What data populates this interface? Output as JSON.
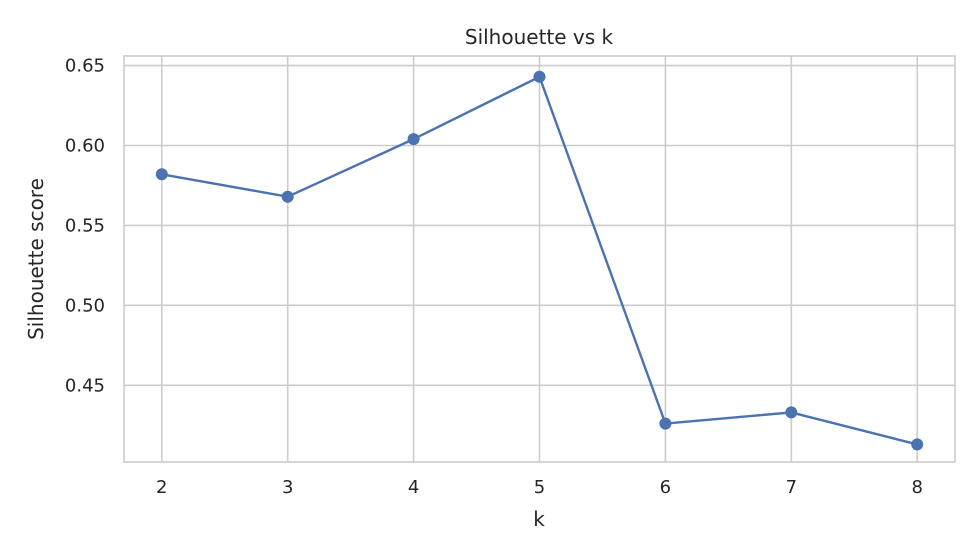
{
  "chart_data": {
    "type": "line",
    "title": "Silhouette vs k",
    "xlabel": "k",
    "ylabel": "Silhouette score",
    "x": [
      2,
      3,
      4,
      5,
      6,
      7,
      8
    ],
    "series": [
      {
        "values": [
          0.582,
          0.568,
          0.604,
          0.643,
          0.426,
          0.433,
          0.413
        ],
        "color": "#4c72b0",
        "marker": "circle"
      }
    ],
    "xlim": [
      1.7,
      8.3
    ],
    "ylim": [
      0.402,
      0.656
    ],
    "xticks": [
      "2",
      "3",
      "4",
      "5",
      "6",
      "7",
      "8"
    ],
    "yticks": [
      "0.45",
      "0.50",
      "0.55",
      "0.60",
      "0.65"
    ],
    "grid": true,
    "legend": "none"
  }
}
